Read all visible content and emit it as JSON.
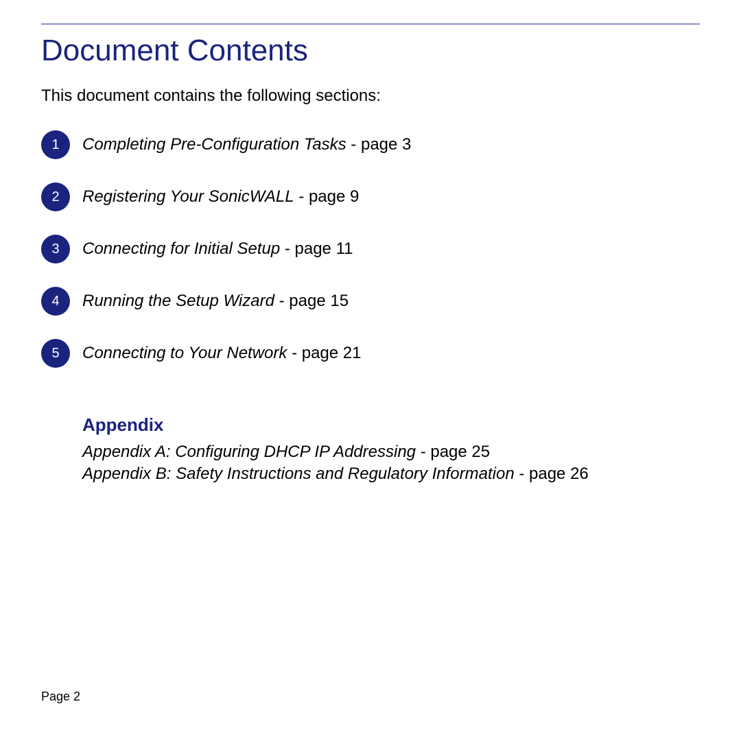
{
  "colors": {
    "rule": "#8a93c9",
    "title": "#1a237e",
    "badge_bg": "#1a237e",
    "appendix_heading": "#1a237e",
    "body_text": "#000000"
  },
  "typography": {
    "title_fontsize": 44,
    "body_fontsize": 24,
    "appendix_heading_fontsize": 26,
    "footer_fontsize": 18
  },
  "header": {
    "title": "Document Contents",
    "intro": "This document contains the following sections:"
  },
  "toc": [
    {
      "num": "1",
      "title": "Completing Pre-Configuration Tasks",
      "suffix": " - page 3"
    },
    {
      "num": "2",
      "title": "Registering Your SonicWALL",
      "suffix": " - page 9"
    },
    {
      "num": "3",
      "title": "Connecting for Initial Setup",
      "suffix": " - page 11"
    },
    {
      "num": "4",
      "title": "Running the Setup Wizard",
      "suffix": " - page 15"
    },
    {
      "num": "5",
      "title": "Connecting to Your Network",
      "suffix": " - page 21"
    }
  ],
  "appendix": {
    "heading": "Appendix",
    "items": [
      {
        "title": "Appendix A: Configuring DHCP IP Addressing",
        "suffix": " - page 25"
      },
      {
        "title": "Appendix B: Safety Instructions and Regulatory Information",
        "suffix": " - page 26"
      }
    ]
  },
  "footer": {
    "page_label": "Page 2"
  }
}
